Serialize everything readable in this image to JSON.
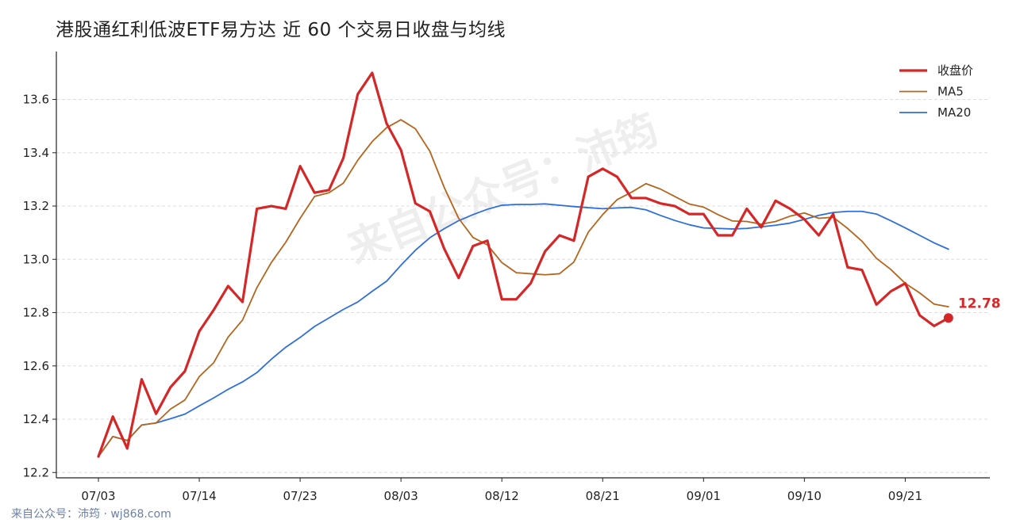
{
  "title": "港股通红利低波ETF易方达 近 60 个交易日收盘与均线",
  "watermark": "来自公众号：沛筠",
  "footer": "来自公众号：沛筠 · wj868.com",
  "colors": {
    "close": "#d62728",
    "ma5": "#b5651d",
    "ma20": "#2f6fdb",
    "grid": "#dddddd",
    "axis": "#222222"
  },
  "chart_data": {
    "type": "line",
    "title": "港股通红利低波ETF易方达 近 60 个交易日收盘与均线",
    "xlabel": "",
    "ylabel": "",
    "ylim": [
      12.18,
      13.78
    ],
    "yticks": [
      12.2,
      12.4,
      12.6,
      12.8,
      13.0,
      13.2,
      13.4,
      13.6
    ],
    "ytick_labels": [
      "12.2",
      "12.4",
      "12.6",
      "12.8",
      "13.0",
      "13.2",
      "13.4",
      "13.6"
    ],
    "xticks": [
      {
        "index": 0,
        "label": "07/03"
      },
      {
        "index": 7,
        "label": "07/14"
      },
      {
        "index": 14,
        "label": "07/23"
      },
      {
        "index": 21,
        "label": "08/03"
      },
      {
        "index": 28,
        "label": "08/12"
      },
      {
        "index": 35,
        "label": "08/21"
      },
      {
        "index": 42,
        "label": "09/01"
      },
      {
        "index": 49,
        "label": "09/10"
      },
      {
        "index": 56,
        "label": "09/21"
      }
    ],
    "legend_position": "top-right",
    "grid": "horizontal dashed",
    "last_value_label": "12.78",
    "series": [
      {
        "name": "收盘价",
        "values": [
          12.26,
          12.41,
          12.29,
          12.55,
          12.42,
          12.52,
          12.58,
          12.73,
          12.81,
          12.9,
          12.84,
          13.19,
          13.2,
          13.19,
          13.35,
          13.25,
          13.26,
          13.38,
          13.62,
          13.7,
          13.51,
          13.41,
          13.21,
          13.18,
          13.04,
          12.93,
          13.05,
          13.07,
          12.85,
          12.85,
          12.91,
          13.03,
          13.09,
          13.07,
          13.31,
          13.34,
          13.31,
          13.23,
          13.23,
          13.21,
          13.2,
          13.17,
          13.17,
          13.09,
          13.09,
          13.19,
          13.12,
          13.22,
          13.19,
          13.15,
          13.09,
          13.17,
          12.97,
          12.96,
          12.83,
          12.88,
          12.91,
          12.79,
          12.75,
          12.78
        ]
      },
      {
        "name": "MA5",
        "values": [
          12.26,
          12.335,
          12.32,
          12.378,
          12.386,
          12.438,
          12.472,
          12.56,
          12.612,
          12.708,
          12.772,
          12.894,
          12.988,
          13.064,
          13.154,
          13.236,
          13.25,
          13.286,
          13.372,
          13.442,
          13.494,
          13.524,
          13.49,
          13.406,
          13.27,
          13.154,
          13.082,
          13.054,
          12.988,
          12.95,
          12.946,
          12.942,
          12.946,
          12.99,
          13.102,
          13.168,
          13.224,
          13.252,
          13.284,
          13.264,
          13.236,
          13.208,
          13.196,
          13.168,
          13.144,
          13.142,
          13.132,
          13.142,
          13.162,
          13.174,
          13.154,
          13.158,
          13.116,
          13.068,
          13.004,
          12.962,
          12.91,
          12.874,
          12.832,
          12.822
        ]
      },
      {
        "name": "MA20",
        "values": [
          12.26,
          12.335,
          12.32,
          12.378,
          12.386,
          12.402,
          12.419,
          12.45,
          12.48,
          12.512,
          12.54,
          12.575,
          12.625,
          12.67,
          12.707,
          12.748,
          12.78,
          12.812,
          12.84,
          12.88,
          12.918,
          12.978,
          13.034,
          13.081,
          13.115,
          13.145,
          13.168,
          13.188,
          13.203,
          13.206,
          13.206,
          13.208,
          13.203,
          13.198,
          13.194,
          13.19,
          13.193,
          13.195,
          13.186,
          13.165,
          13.146,
          13.13,
          13.118,
          13.116,
          13.114,
          13.116,
          13.122,
          13.128,
          13.136,
          13.15,
          13.165,
          13.176,
          13.18,
          13.18,
          13.17,
          13.145,
          13.118,
          13.09,
          13.062,
          13.038
        ]
      }
    ]
  }
}
